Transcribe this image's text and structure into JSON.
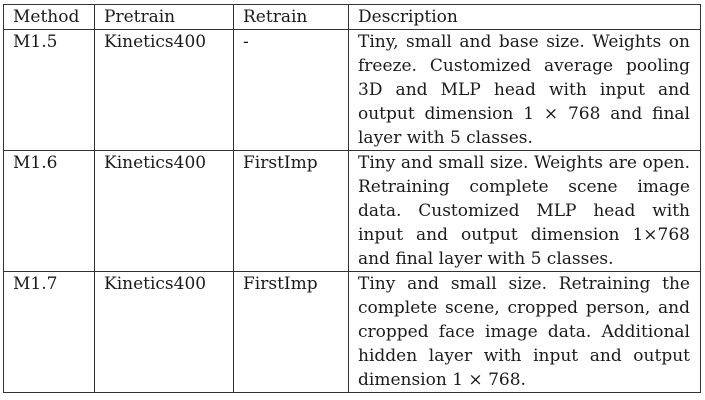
{
  "table": {
    "headers": [
      "Method",
      "Pretrain",
      "Retrain",
      "Description"
    ],
    "rows": [
      {
        "method": "M1.5",
        "pretrain": "Kinetics400",
        "retrain": "-",
        "description": "Tiny, small and base size. Weights on freeze. Customized average pooling 3D and MLP head with input and output dimension 1 × 768 and final layer with 5 classes."
      },
      {
        "method": "M1.6",
        "pretrain": "Kinetics400",
        "retrain": "FirstImp",
        "description": "Tiny and small size. Weights are open. Retraining complete scene image data. Customized MLP head with input and output dimension 1×768 and final layer with 5 classes."
      },
      {
        "method": "M1.7",
        "pretrain": "Kinetics400",
        "retrain": "FirstImp",
        "description": "Tiny and small size. Retraining the complete scene, cropped person, and cropped face image data. Additional hidden layer with input and output dimension 1 × 768."
      }
    ]
  }
}
